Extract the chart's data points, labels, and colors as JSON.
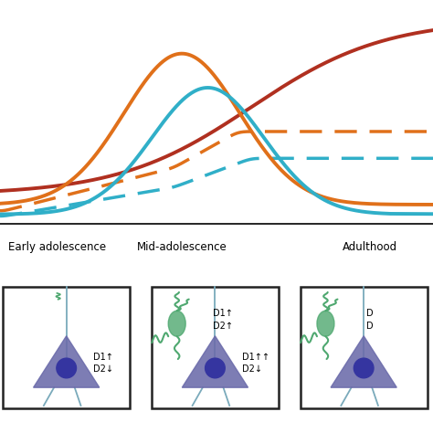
{
  "bg_color": "#ffffff",
  "line_colors": {
    "red_solid": "#b03020",
    "orange_solid": "#e0701a",
    "cyan_solid": "#30afc8",
    "orange_dashed": "#e0701a",
    "cyan_dashed": "#30afc8"
  },
  "labels": {
    "early": "Early adolescence",
    "mid": "Mid-adolescence",
    "adult": "Adulthood"
  },
  "cell_colors": {
    "triangle_fill": "#6b6baa",
    "nucleus_fill": "#3535a0",
    "neuron_green": "#4fa870",
    "cross_line": "#7aaabb",
    "box_edge": "#222222"
  },
  "annotation": {
    "d1up_d2down": "D1↑\nD2↓",
    "d1upup_d2down": "D1↑↑\nD2↓",
    "d1up_d2up": "D1↑\nD2↑"
  }
}
